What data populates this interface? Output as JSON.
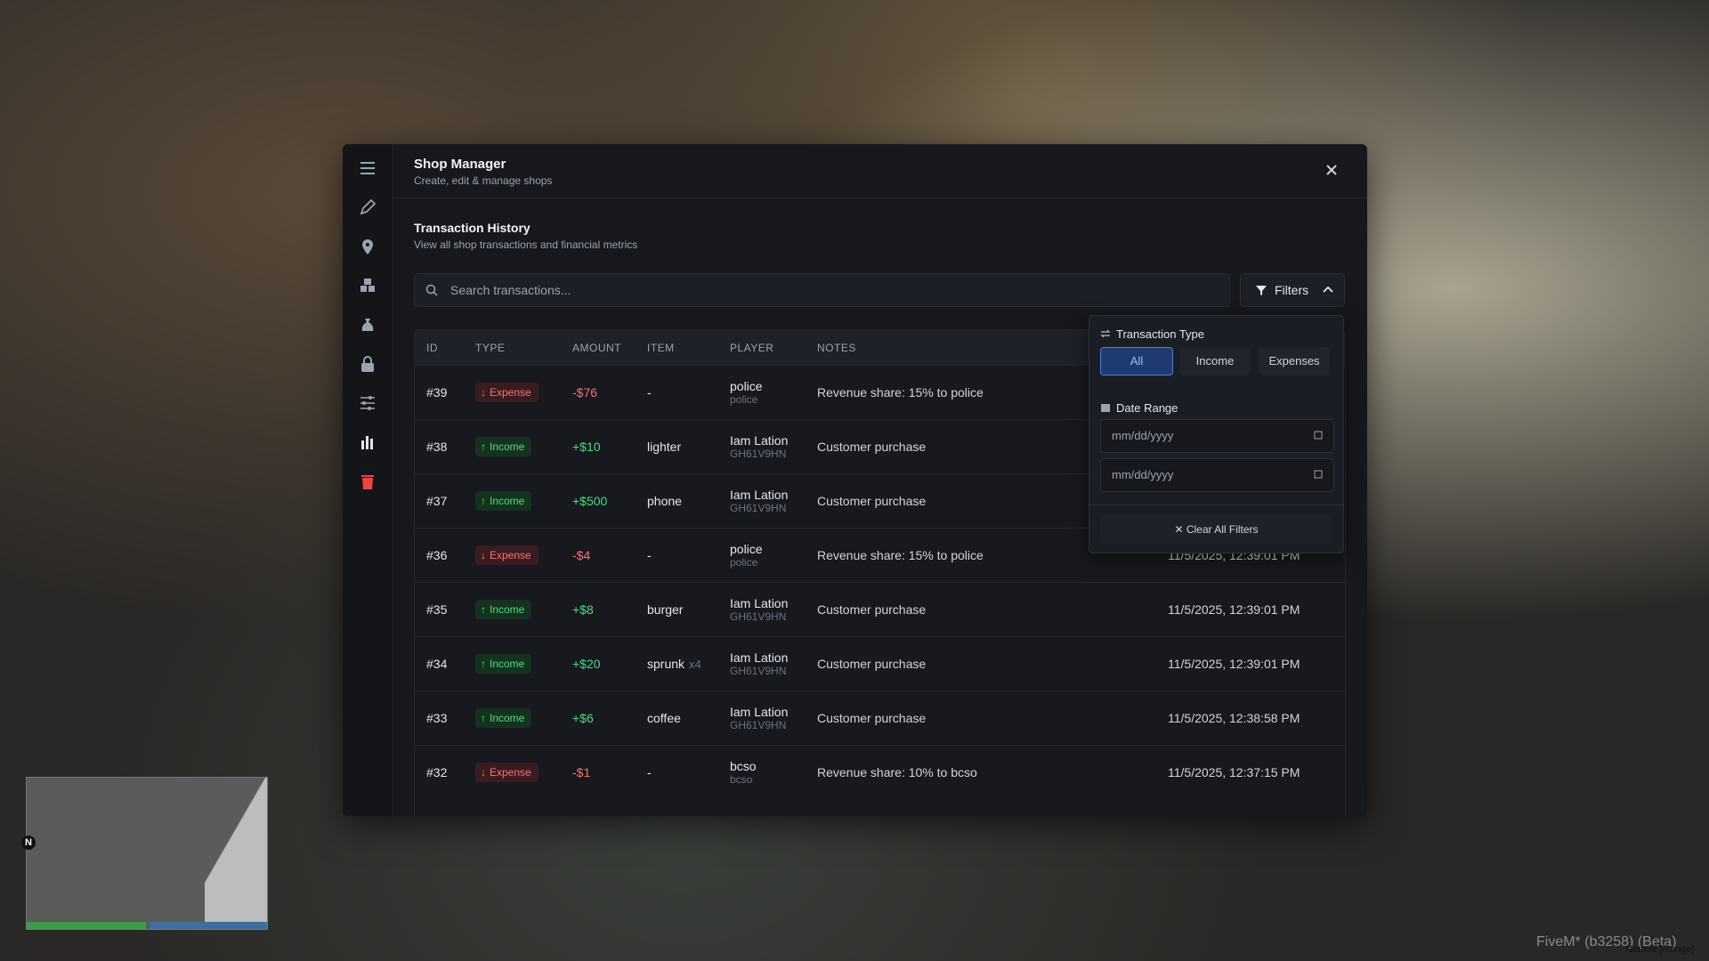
{
  "header": {
    "title": "Shop Manager",
    "subtitle": "Create, edit & manage shops"
  },
  "section": {
    "title": "Transaction History",
    "subtitle": "View all shop transactions and financial metrics"
  },
  "search": {
    "placeholder": "Search transactions...",
    "filters_button": "Filters"
  },
  "table": {
    "columns": [
      "ID",
      "TYPE",
      "AMOUNT",
      "ITEM",
      "PLAYER",
      "NOTES"
    ],
    "rows": [
      {
        "id": "#39",
        "type": "Expense",
        "amount": "-$76",
        "item": "-",
        "qty": null,
        "player": "police",
        "player_id": "police",
        "notes": "Revenue share: 15% to police",
        "date": null
      },
      {
        "id": "#38",
        "type": "Income",
        "amount": "+$10",
        "item": "lighter",
        "qty": null,
        "player": "Iam Lation",
        "player_id": "GH61V9HN",
        "notes": "Customer purchase",
        "date": null
      },
      {
        "id": "#37",
        "type": "Income",
        "amount": "+$500",
        "item": "phone",
        "qty": null,
        "player": "Iam Lation",
        "player_id": "GH61V9HN",
        "notes": "Customer purchase",
        "date": null
      },
      {
        "id": "#36",
        "type": "Expense",
        "amount": "-$4",
        "item": "-",
        "qty": null,
        "player": "police",
        "player_id": "police",
        "notes": "Revenue share: 15% to police",
        "date": "11/5/2025, 12:39:01 PM"
      },
      {
        "id": "#35",
        "type": "Income",
        "amount": "+$8",
        "item": "burger",
        "qty": null,
        "player": "Iam Lation",
        "player_id": "GH61V9HN",
        "notes": "Customer purchase",
        "date": "11/5/2025, 12:39:01 PM"
      },
      {
        "id": "#34",
        "type": "Income",
        "amount": "+$20",
        "item": "sprunk",
        "qty": "x4",
        "player": "Iam Lation",
        "player_id": "GH61V9HN",
        "notes": "Customer purchase",
        "date": "11/5/2025, 12:39:01 PM"
      },
      {
        "id": "#33",
        "type": "Income",
        "amount": "+$6",
        "item": "coffee",
        "qty": null,
        "player": "Iam Lation",
        "player_id": "GH61V9HN",
        "notes": "Customer purchase",
        "date": "11/5/2025, 12:38:58 PM"
      },
      {
        "id": "#32",
        "type": "Expense",
        "amount": "-$1",
        "item": "-",
        "qty": null,
        "player": "bcso",
        "player_id": "bcso",
        "notes": "Revenue share: 10% to bcso",
        "date": "11/5/2025, 12:37:15 PM"
      }
    ]
  },
  "filters": {
    "type_label": "Transaction Type",
    "type_options": [
      "All",
      "Income",
      "Expenses"
    ],
    "date_label": "Date Range",
    "date_placeholders": [
      "mm/dd/yyyy",
      "mm/dd/yyyy"
    ],
    "clear": "Clear All Filters"
  },
  "hud": {
    "compass": "N",
    "watermark": "FiveM* (b3258) (Beta)",
    "mode": "Normal [Range]"
  }
}
